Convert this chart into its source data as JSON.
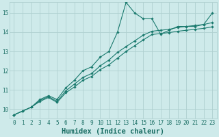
{
  "title": "",
  "xlabel": "Humidex (Indice chaleur)",
  "ylabel": "",
  "bg_color": "#ceeaea",
  "grid_color": "#b0d0d0",
  "line_color": "#1a7a6e",
  "x_ticks": [
    0,
    1,
    2,
    3,
    4,
    5,
    6,
    7,
    8,
    9,
    10,
    11,
    12,
    13,
    14,
    15,
    16,
    17,
    18,
    19,
    20,
    21,
    22,
    23
  ],
  "y_ticks": [
    10,
    11,
    12,
    13,
    14,
    15
  ],
  "xlim": [
    -0.5,
    23.5
  ],
  "ylim": [
    9.5,
    15.55
  ],
  "line1_y": [
    9.7,
    9.9,
    10.1,
    10.5,
    10.7,
    10.5,
    11.1,
    11.5,
    12.0,
    12.2,
    12.7,
    13.0,
    14.0,
    15.55,
    15.0,
    14.7,
    14.7,
    13.9,
    14.1,
    14.3,
    14.3,
    14.3,
    14.4,
    15.0
  ],
  "line2_y": [
    9.7,
    9.9,
    10.1,
    10.45,
    10.65,
    10.4,
    10.95,
    11.3,
    11.65,
    11.85,
    12.25,
    12.55,
    12.95,
    13.25,
    13.55,
    13.85,
    14.05,
    14.1,
    14.15,
    14.25,
    14.3,
    14.35,
    14.4,
    14.5
  ],
  "line3_y": [
    9.7,
    9.9,
    10.1,
    10.4,
    10.6,
    10.35,
    10.85,
    11.15,
    11.5,
    11.7,
    12.05,
    12.3,
    12.65,
    13.0,
    13.3,
    13.6,
    13.88,
    13.93,
    13.98,
    14.05,
    14.1,
    14.15,
    14.2,
    14.28
  ],
  "marker": "D",
  "marker_size": 1.8,
  "linewidth": 0.8,
  "font_color": "#1a6e64",
  "tick_fontsize": 5.5,
  "xlabel_fontsize": 7.5
}
